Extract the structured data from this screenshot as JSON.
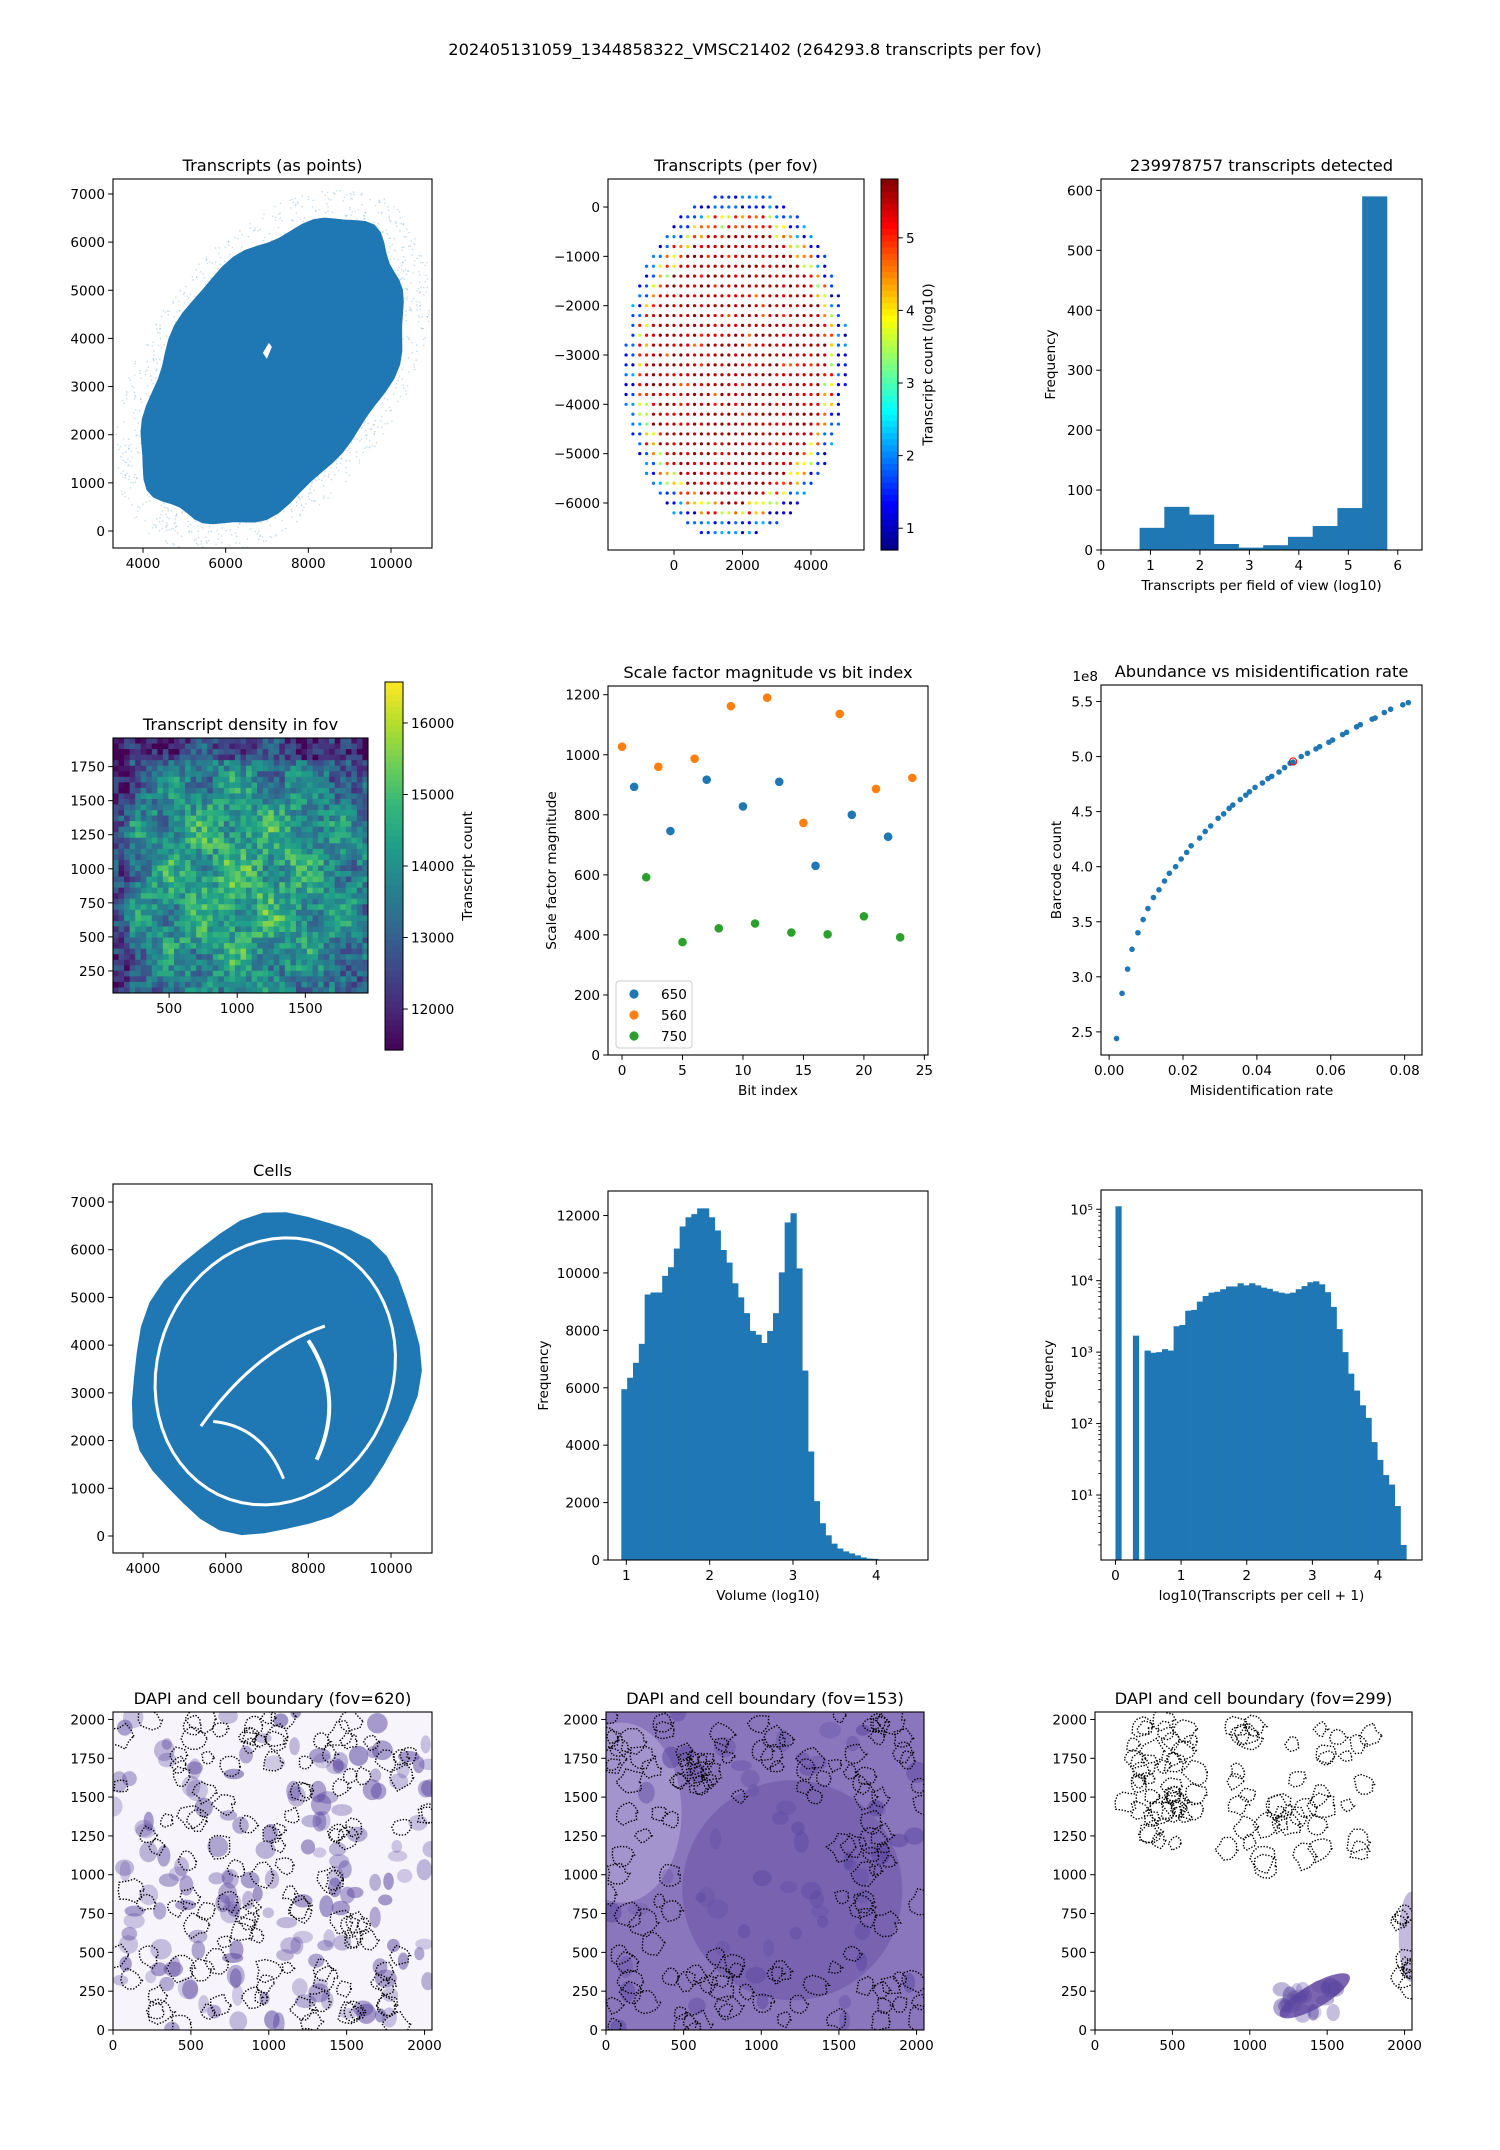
{
  "figure": {
    "suptitle": "202405131059_1344858322_VMSC21402 (264293.8 transcripts per fov)"
  },
  "colors": {
    "c0": "#1f77b4",
    "c1": "#ff7f0e",
    "c2": "#2ca02c",
    "highlight": "#ff0000"
  },
  "chart_data": [
    {
      "type": "scatter",
      "title": "Transcripts (as points)",
      "xlabel": "",
      "ylabel": "",
      "xlim": [
        3274,
        10992
      ],
      "ylim": [
        -353,
        7311
      ],
      "xticks": [
        4000,
        6000,
        8000,
        10000
      ],
      "xticklabels": [
        "4000",
        "6000",
        "8000",
        "10000"
      ],
      "yticks": [
        0,
        1000,
        2000,
        3000,
        4000,
        5000,
        6000,
        7000
      ],
      "yticklabels": [
        "0",
        "1000",
        "2000",
        "3000",
        "4000",
        "5000",
        "6000",
        "7000"
      ]
    },
    {
      "type": "scatter",
      "title": "Transcripts (per fov)",
      "xlabel": "",
      "ylabel": "",
      "xlim": [
        -1927,
        5547
      ],
      "ylim": [
        -6953,
        568
      ],
      "xticks": [
        0,
        2000,
        4000
      ],
      "xticklabels": [
        "0",
        "2000",
        "4000"
      ],
      "yticks": [
        0,
        -1000,
        -2000,
        -3000,
        -4000,
        -5000,
        -6000
      ],
      "yticklabels": [
        "0",
        "−1000",
        "−2000",
        "−3000",
        "−4000",
        "−5000",
        "−6000"
      ],
      "grid_spacing": 200,
      "colorbar": {
        "label": "Transcript count (log10)",
        "cmap": "jet",
        "lim": [
          0.7,
          5.81
        ],
        "ticks": [
          1,
          2,
          3,
          4,
          5
        ],
        "ticklabels": [
          "1",
          "2",
          "3",
          "4",
          "5"
        ]
      }
    },
    {
      "type": "bar",
      "title": "239978757 transcripts detected",
      "xlabel": "Transcripts per field of view (log10)",
      "ylabel": "Frequency",
      "xlim": [
        0,
        6.49
      ],
      "ylim": [
        0,
        619
      ],
      "xticks": [
        0,
        1,
        2,
        3,
        4,
        5,
        6
      ],
      "xticklabels": [
        "0",
        "1",
        "2",
        "3",
        "4",
        "5",
        "6"
      ],
      "yticks": [
        0,
        100,
        200,
        300,
        400,
        500,
        600
      ],
      "yticklabels": [
        "0",
        "100",
        "200",
        "300",
        "400",
        "500",
        "600"
      ],
      "bin_start": 0.78,
      "bin_width": 0.5,
      "values": [
        37,
        72,
        59,
        10,
        4,
        8,
        22,
        40,
        70,
        590
      ]
    },
    {
      "type": "heatmap",
      "title": "Transcript density in fov",
      "xlabel": "",
      "ylabel": "",
      "xlim": [
        88,
        1960
      ],
      "ylim": [
        88,
        1960
      ],
      "xticks": [
        500,
        1000,
        1500
      ],
      "xticklabels": [
        "500",
        "1000",
        "1500"
      ],
      "yticks": [
        250,
        500,
        750,
        1000,
        1250,
        1500,
        1750
      ],
      "yticklabels": [
        "250",
        "500",
        "750",
        "1000",
        "1250",
        "1500",
        "1750"
      ],
      "colorbar": {
        "label": "Transcript count",
        "cmap": "viridis",
        "lim": [
          11427,
          16573
        ],
        "ticks": [
          12000,
          13000,
          14000,
          15000,
          16000
        ],
        "ticklabels": [
          "12000",
          "13000",
          "14000",
          "15000",
          "16000"
        ]
      }
    },
    {
      "type": "scatter",
      "title": "Scale factor magnitude vs bit index",
      "xlabel": "Bit index",
      "ylabel": "Scale factor magnitude",
      "xlim": [
        -1.16,
        25.3
      ],
      "ylim": [
        0,
        1229
      ],
      "xticks": [
        0,
        5,
        10,
        15,
        20,
        25
      ],
      "xticklabels": [
        "0",
        "5",
        "10",
        "15",
        "20",
        "25"
      ],
      "yticks": [
        0,
        200,
        400,
        600,
        800,
        1000,
        1200
      ],
      "yticklabels": [
        "0",
        "200",
        "400",
        "600",
        "800",
        "1000",
        "1200"
      ],
      "legend_position": "lower-left",
      "series": [
        {
          "name": "650",
          "color": "#1f77b4",
          "x": [
            1,
            4,
            7,
            10,
            13,
            16,
            19,
            22
          ],
          "y": [
            893,
            746,
            917,
            828,
            910,
            630,
            800,
            727
          ]
        },
        {
          "name": "560",
          "color": "#ff7f0e",
          "x": [
            0,
            3,
            6,
            9,
            12,
            15,
            18,
            21,
            24
          ],
          "y": [
            1027,
            960,
            987,
            1162,
            1190,
            773,
            1136,
            886,
            923
          ]
        },
        {
          "name": "750",
          "color": "#2ca02c",
          "x": [
            2,
            5,
            8,
            11,
            14,
            17,
            20,
            23
          ],
          "y": [
            592,
            376,
            422,
            438,
            408,
            402,
            462,
            392
          ]
        }
      ]
    },
    {
      "type": "scatter",
      "title": "Abundance vs misidentification rate",
      "xlabel": "Misidentification rate",
      "ylabel": "Barcode count",
      "offset_text": "1e8",
      "xlim": [
        -0.0022,
        0.0847
      ],
      "ylim": [
        2.29,
        5.65
      ],
      "xticks": [
        0,
        0.02,
        0.04,
        0.06,
        0.08
      ],
      "xticklabels": [
        "0.00",
        "0.02",
        "0.04",
        "0.06",
        "0.08"
      ],
      "yticks": [
        2.5,
        3.0,
        3.5,
        4.0,
        4.5,
        5.0,
        5.5
      ],
      "yticklabels": [
        "2.5",
        "3.0",
        "3.5",
        "4.0",
        "4.5",
        "5.0",
        "5.5"
      ],
      "points": [
        [
          0.002,
          2.44
        ],
        [
          0.0035,
          2.85
        ],
        [
          0.005,
          3.07
        ],
        [
          0.0062,
          3.25
        ],
        [
          0.0078,
          3.4
        ],
        [
          0.0092,
          3.52
        ],
        [
          0.0105,
          3.62
        ],
        [
          0.012,
          3.72
        ],
        [
          0.0135,
          3.79
        ],
        [
          0.015,
          3.87
        ],
        [
          0.0163,
          3.94
        ],
        [
          0.018,
          4.0
        ],
        [
          0.0195,
          4.07
        ],
        [
          0.021,
          4.13
        ],
        [
          0.0222,
          4.19
        ],
        [
          0.0245,
          4.26
        ],
        [
          0.026,
          4.32
        ],
        [
          0.0275,
          4.37
        ],
        [
          0.0295,
          4.44
        ],
        [
          0.031,
          4.48
        ],
        [
          0.0325,
          4.53
        ],
        [
          0.0335,
          4.56
        ],
        [
          0.0355,
          4.61
        ],
        [
          0.037,
          4.65
        ],
        [
          0.038,
          4.68
        ],
        [
          0.0395,
          4.72
        ],
        [
          0.0415,
          4.76
        ],
        [
          0.043,
          4.8
        ],
        [
          0.044,
          4.82
        ],
        [
          0.046,
          4.86
        ],
        [
          0.0475,
          4.9
        ],
        [
          0.049,
          4.94
        ],
        [
          0.0498,
          4.95
        ],
        [
          0.052,
          5.0
        ],
        [
          0.0537,
          5.03
        ],
        [
          0.056,
          5.07
        ],
        [
          0.057,
          5.09
        ],
        [
          0.0595,
          5.13
        ],
        [
          0.0605,
          5.15
        ],
        [
          0.0632,
          5.2
        ],
        [
          0.0643,
          5.22
        ],
        [
          0.067,
          5.27
        ],
        [
          0.068,
          5.29
        ],
        [
          0.0712,
          5.34
        ],
        [
          0.072,
          5.35
        ],
        [
          0.0745,
          5.4
        ],
        [
          0.0762,
          5.43
        ],
        [
          0.0795,
          5.47
        ],
        [
          0.081,
          5.49
        ]
      ],
      "highlight": [
        0.0498,
        4.955
      ]
    },
    {
      "type": "scatter",
      "title": "Cells",
      "xlabel": "",
      "ylabel": "",
      "xlim": [
        3274,
        10992
      ],
      "ylim": [
        -356,
        7377
      ],
      "xticks": [
        4000,
        6000,
        8000,
        10000
      ],
      "xticklabels": [
        "4000",
        "6000",
        "8000",
        "10000"
      ],
      "yticks": [
        0,
        1000,
        2000,
        3000,
        4000,
        5000,
        6000,
        7000
      ],
      "yticklabels": [
        "0",
        "1000",
        "2000",
        "3000",
        "4000",
        "5000",
        "6000",
        "7000"
      ]
    },
    {
      "type": "bar",
      "title": "",
      "xlabel": "Volume (log10)",
      "ylabel": "Frequency",
      "xlim": [
        0.78,
        4.62
      ],
      "ylim": [
        0,
        12855
      ],
      "xticks": [
        1,
        2,
        3,
        4
      ],
      "xticklabels": [
        "1",
        "2",
        "3",
        "4"
      ],
      "yticks": [
        0,
        2000,
        4000,
        6000,
        8000,
        10000,
        12000
      ],
      "yticklabels": [
        "0",
        "2000",
        "4000",
        "6000",
        "8000",
        "10000",
        "12000"
      ],
      "bin_start": 0.94,
      "bin_width": 0.07,
      "values": [
        5950,
        6350,
        6870,
        7530,
        9250,
        9320,
        9320,
        9900,
        10200,
        10850,
        11620,
        11940,
        12050,
        12250,
        12250,
        11940,
        11480,
        10800,
        10360,
        9640,
        9150,
        8600,
        7980,
        7850,
        7560,
        7980,
        8600,
        10020,
        11760,
        12080,
        10160,
        6600,
        3780,
        2050,
        1280,
        860,
        570,
        400,
        300,
        230,
        160,
        90,
        50,
        40
      ]
    },
    {
      "type": "bar",
      "title": "",
      "xlabel": "log10(Transcripts per cell + 1)",
      "ylabel": "Frequency",
      "yscale": "log",
      "xlim": [
        -0.22,
        4.67
      ],
      "ylim": [
        1.23,
        186000
      ],
      "xticks": [
        0,
        1,
        2,
        3,
        4
      ],
      "xticklabels": [
        "0",
        "1",
        "2",
        "3",
        "4"
      ],
      "yticks": [
        10,
        100,
        1000,
        10000,
        100000
      ],
      "yticklabels": [
        "10¹",
        "10²",
        "10³",
        "10⁴",
        "10⁵"
      ],
      "bin_start": 0,
      "bin_width": 0.0886,
      "values": [
        110000,
        0,
        0,
        1700,
        0,
        1050,
        980,
        1000,
        1100,
        1050,
        2300,
        2400,
        3800,
        3900,
        5100,
        6100,
        6800,
        7000,
        7600,
        8300,
        8300,
        9200,
        8600,
        9200,
        8600,
        8000,
        7700,
        7100,
        6800,
        6600,
        6800,
        7600,
        8400,
        9500,
        9800,
        8900,
        6900,
        4300,
        2100,
        1000,
        500,
        290,
        180,
        120,
        55,
        31,
        19,
        14,
        7,
        2
      ]
    },
    {
      "type": "image",
      "title": "DAPI and cell boundary (fov=620)",
      "xlim": [
        0,
        2048
      ],
      "ylim": [
        0,
        2048
      ],
      "xticks": [
        0,
        500,
        1000,
        1500,
        2000
      ],
      "xticklabels": [
        "0",
        "500",
        "1000",
        "1500",
        "2000"
      ],
      "yticks": [
        0,
        250,
        500,
        750,
        1000,
        1250,
        1500,
        1750,
        2000
      ],
      "yticklabels": [
        "0",
        "250",
        "500",
        "750",
        "1000",
        "1250",
        "1500",
        "1750",
        "2000"
      ]
    },
    {
      "type": "image",
      "title": "DAPI and cell boundary (fov=153)",
      "xlim": [
        0,
        2048
      ],
      "ylim": [
        0,
        2048
      ],
      "xticks": [
        0,
        500,
        1000,
        1500,
        2000
      ],
      "xticklabels": [
        "0",
        "500",
        "1000",
        "1500",
        "2000"
      ],
      "yticks": [
        0,
        250,
        500,
        750,
        1000,
        1250,
        1500,
        1750,
        2000
      ],
      "yticklabels": [
        "0",
        "250",
        "500",
        "750",
        "1000",
        "1250",
        "1500",
        "1750",
        "2000"
      ]
    },
    {
      "type": "image",
      "title": "DAPI and cell boundary (fov=299)",
      "xlim": [
        0,
        2048
      ],
      "ylim": [
        0,
        2048
      ],
      "xticks": [
        0,
        500,
        1000,
        1500,
        2000
      ],
      "xticklabels": [
        "0",
        "500",
        "1000",
        "1500",
        "2000"
      ],
      "yticks": [
        0,
        250,
        500,
        750,
        1000,
        1250,
        1500,
        1750,
        2000
      ],
      "yticklabels": [
        "0",
        "250",
        "500",
        "750",
        "1000",
        "1250",
        "1500",
        "1750",
        "2000"
      ]
    }
  ]
}
